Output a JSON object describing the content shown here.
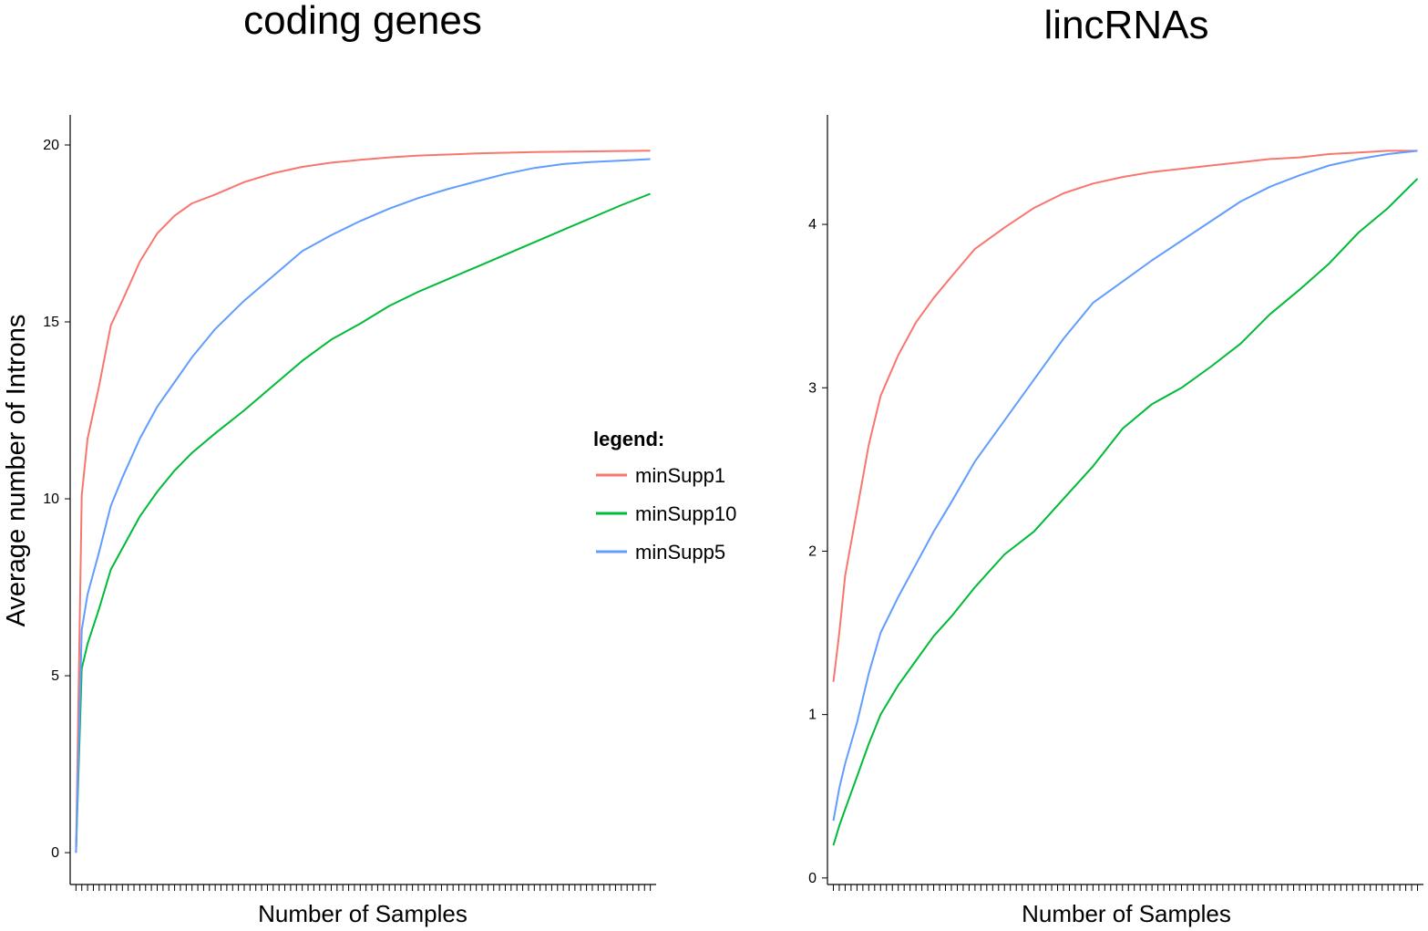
{
  "figure": {
    "ylabel_shared": "Average number of Introns",
    "legend": {
      "title": "legend:",
      "entries": [
        {
          "name": "minSupp1",
          "color": "#F8766D"
        },
        {
          "name": "minSupp10",
          "color": "#00BA38"
        },
        {
          "name": "minSupp5",
          "color": "#619CFF"
        }
      ]
    }
  },
  "chart_data": [
    {
      "type": "line",
      "title": "coding genes",
      "xlabel": "Number of Samples",
      "ylabel": "Average number of Introns",
      "x_ticks_labeled": false,
      "x_tick_count": 100,
      "ylim": [
        -0.9,
        20.85
      ],
      "y_ticks": [
        0,
        5,
        10,
        15,
        20
      ],
      "grid": false,
      "x": [
        1,
        2,
        3,
        5,
        7,
        9,
        12,
        15,
        18,
        21,
        25,
        30,
        35,
        40,
        45,
        50,
        55,
        60,
        65,
        70,
        75,
        80,
        85,
        90,
        95,
        100
      ],
      "series": [
        {
          "name": "minSupp1",
          "color": "#F8766D",
          "values": [
            0,
            10.1,
            11.7,
            13.2,
            14.9,
            15.6,
            16.7,
            17.5,
            18.0,
            18.35,
            18.6,
            18.95,
            19.2,
            19.38,
            19.5,
            19.58,
            19.65,
            19.7,
            19.73,
            19.76,
            19.78,
            19.8,
            19.81,
            19.82,
            19.83,
            19.84
          ]
        },
        {
          "name": "minSupp10",
          "color": "#00BA38",
          "values": [
            0,
            5.2,
            5.9,
            6.9,
            8.0,
            8.6,
            9.5,
            10.2,
            10.8,
            11.3,
            11.85,
            12.5,
            13.2,
            13.9,
            14.5,
            14.95,
            15.45,
            15.85,
            16.2,
            16.55,
            16.9,
            17.25,
            17.6,
            17.95,
            18.3,
            18.62
          ]
        },
        {
          "name": "minSupp5",
          "color": "#619CFF",
          "values": [
            0,
            6.3,
            7.3,
            8.5,
            9.8,
            10.6,
            11.7,
            12.6,
            13.3,
            14.0,
            14.8,
            15.6,
            16.3,
            17.0,
            17.45,
            17.85,
            18.2,
            18.5,
            18.75,
            18.97,
            19.18,
            19.35,
            19.46,
            19.52,
            19.56,
            19.6
          ]
        }
      ]
    },
    {
      "type": "line",
      "title": "lincRNAs",
      "xlabel": "Number of Samples",
      "ylabel": "",
      "x_ticks_labeled": false,
      "x_tick_count": 100,
      "ylim": [
        -0.04,
        4.67
      ],
      "y_ticks": [
        0,
        1,
        2,
        3,
        4
      ],
      "grid": false,
      "x": [
        1,
        2,
        3,
        5,
        7,
        9,
        12,
        15,
        18,
        21,
        25,
        30,
        35,
        40,
        45,
        50,
        55,
        60,
        65,
        70,
        75,
        80,
        85,
        90,
        95,
        100
      ],
      "series": [
        {
          "name": "minSupp1",
          "color": "#F8766D",
          "values": [
            1.2,
            1.5,
            1.85,
            2.25,
            2.65,
            2.95,
            3.2,
            3.4,
            3.55,
            3.68,
            3.85,
            3.98,
            4.1,
            4.19,
            4.25,
            4.29,
            4.32,
            4.34,
            4.36,
            4.38,
            4.4,
            4.41,
            4.43,
            4.44,
            4.45,
            4.45
          ]
        },
        {
          "name": "minSupp10",
          "color": "#00BA38",
          "values": [
            0.2,
            0.32,
            0.42,
            0.62,
            0.82,
            1.0,
            1.18,
            1.33,
            1.48,
            1.6,
            1.78,
            1.98,
            2.12,
            2.32,
            2.52,
            2.75,
            2.9,
            3.0,
            3.13,
            3.27,
            3.45,
            3.6,
            3.76,
            3.95,
            4.1,
            4.28
          ]
        },
        {
          "name": "minSupp5",
          "color": "#619CFF",
          "values": [
            0.35,
            0.55,
            0.7,
            0.95,
            1.25,
            1.5,
            1.72,
            1.92,
            2.12,
            2.3,
            2.55,
            2.8,
            3.05,
            3.3,
            3.52,
            3.65,
            3.78,
            3.9,
            4.02,
            4.14,
            4.23,
            4.3,
            4.36,
            4.4,
            4.43,
            4.45
          ]
        }
      ]
    }
  ]
}
